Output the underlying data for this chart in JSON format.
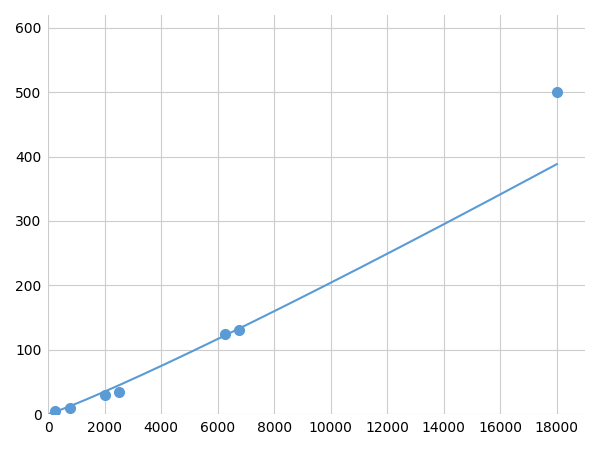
{
  "x_data": [
    250,
    750,
    2000,
    2500,
    6250,
    6750,
    18000
  ],
  "y_data": [
    5,
    10,
    30,
    35,
    125,
    130,
    500
  ],
  "line_color": "#5B9BD5",
  "marker_color": "#5B9BD5",
  "marker_size": 7,
  "linewidth": 1.5,
  "xlim": [
    0,
    19000
  ],
  "ylim": [
    0,
    620
  ],
  "xticks": [
    0,
    2000,
    4000,
    6000,
    8000,
    10000,
    12000,
    14000,
    16000,
    18000
  ],
  "yticks": [
    0,
    100,
    200,
    300,
    400,
    500,
    600
  ],
  "grid_color": "#cccccc",
  "background_color": "#ffffff",
  "tick_fontsize": 10
}
